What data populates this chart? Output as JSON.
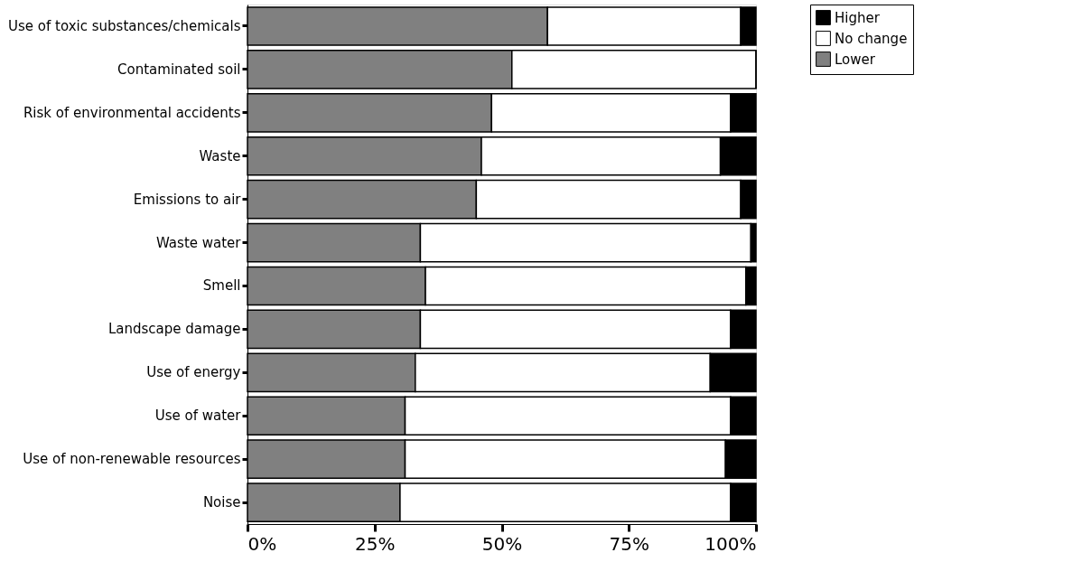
{
  "chart_data": {
    "type": "bar",
    "orientation": "horizontal",
    "stacked": true,
    "categories": [
      "Use of toxic substances/chemicals",
      "Contaminated soil",
      "Risk of environmental accidents",
      "Waste",
      "Emissions to air",
      "Waste water",
      "Smell",
      "Landscape damage",
      "Use of energy",
      "Use of water",
      "Use of non-renewable resources",
      "Noise"
    ],
    "series": [
      {
        "name": "Lower",
        "color": "#808080",
        "values": [
          59,
          52,
          48,
          46,
          45,
          34,
          35,
          34,
          33,
          31,
          31,
          30
        ]
      },
      {
        "name": "No change",
        "color": "#ffffff",
        "values": [
          38,
          48,
          47,
          47,
          52,
          65,
          63,
          61,
          58,
          64,
          63,
          65
        ]
      },
      {
        "name": "Higher",
        "color": "#000000",
        "values": [
          3,
          0,
          5,
          7,
          3,
          1,
          2,
          5,
          9,
          5,
          6,
          5
        ]
      }
    ],
    "xlim": [
      0,
      100
    ],
    "xticks": [
      {
        "value": 0,
        "label": "0%"
      },
      {
        "value": 25,
        "label": "25%"
      },
      {
        "value": 50,
        "label": "50%"
      },
      {
        "value": 75,
        "label": "75%"
      },
      {
        "value": 100,
        "label": "100%"
      }
    ],
    "grid": false,
    "legend": "top right"
  }
}
